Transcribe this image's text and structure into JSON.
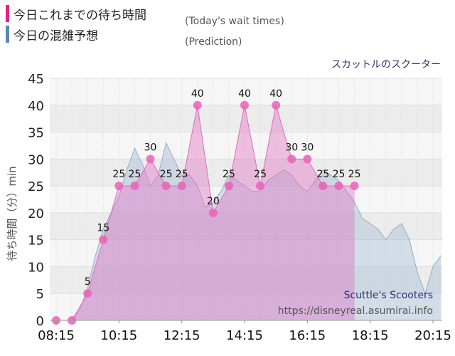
{
  "legend": {
    "actual_label": "今日これまでの待ち時間",
    "actual_note": "(Today's wait times)",
    "predicted_label": "今日の混雑予想",
    "predicted_note": "(Prediction)",
    "actual_color": "#e8208c",
    "predicted_color": "#5a86b8"
  },
  "attraction_name": "スカットルのスクーター",
  "watermark": {
    "title": "Scuttle's Scooters",
    "url": "https://disneyreal.asumirai.info"
  },
  "chart_data": {
    "type": "area",
    "ylabel": "待ち時間（分）min",
    "ylim": [
      0,
      45
    ],
    "yticks": [
      0,
      5,
      10,
      15,
      20,
      25,
      30,
      35,
      40,
      45
    ],
    "xticks": [
      "08:15",
      "10:15",
      "12:15",
      "14:15",
      "16:15",
      "18:15",
      "20:15"
    ],
    "grid": true,
    "series": [
      {
        "key": "actual",
        "x": [
          "08:15",
          "08:45",
          "09:15",
          "09:45",
          "10:15",
          "10:45",
          "11:15",
          "11:45",
          "12:15",
          "12:45",
          "13:15",
          "13:45",
          "14:15",
          "14:45",
          "15:15",
          "15:45",
          "16:15",
          "16:45",
          "17:15",
          "17:45"
        ],
        "values": [
          0,
          0,
          5,
          15,
          25,
          25,
          30,
          25,
          25,
          40,
          20,
          25,
          40,
          25,
          40,
          30,
          30,
          25,
          25,
          25
        ]
      },
      {
        "key": "predicted",
        "x": [
          "08:15",
          "08:45",
          "09:00",
          "09:15",
          "09:30",
          "09:45",
          "10:00",
          "10:15",
          "10:30",
          "10:45",
          "11:00",
          "11:15",
          "11:30",
          "11:45",
          "12:00",
          "12:15",
          "12:30",
          "12:45",
          "13:00",
          "13:15",
          "13:30",
          "13:45",
          "14:00",
          "14:15",
          "14:30",
          "14:45",
          "15:00",
          "15:15",
          "15:30",
          "15:45",
          "16:00",
          "16:15",
          "16:30",
          "16:45",
          "17:00",
          "17:15",
          "17:30",
          "17:45",
          "18:00",
          "18:15",
          "18:30",
          "18:45",
          "19:00",
          "19:15",
          "19:30",
          "19:45",
          "20:00",
          "20:15",
          "20:30"
        ],
        "values": [
          0,
          0,
          2,
          6,
          12,
          17,
          20,
          23,
          28,
          32,
          29,
          25,
          27,
          33,
          30,
          27,
          27,
          25,
          21,
          22,
          24,
          27,
          26,
          25,
          24,
          24,
          26,
          27,
          28,
          27,
          25,
          24,
          26,
          28,
          27,
          26,
          24,
          22,
          19,
          18,
          17,
          15,
          17,
          18,
          15,
          9,
          5,
          10,
          12
        ]
      }
    ]
  }
}
